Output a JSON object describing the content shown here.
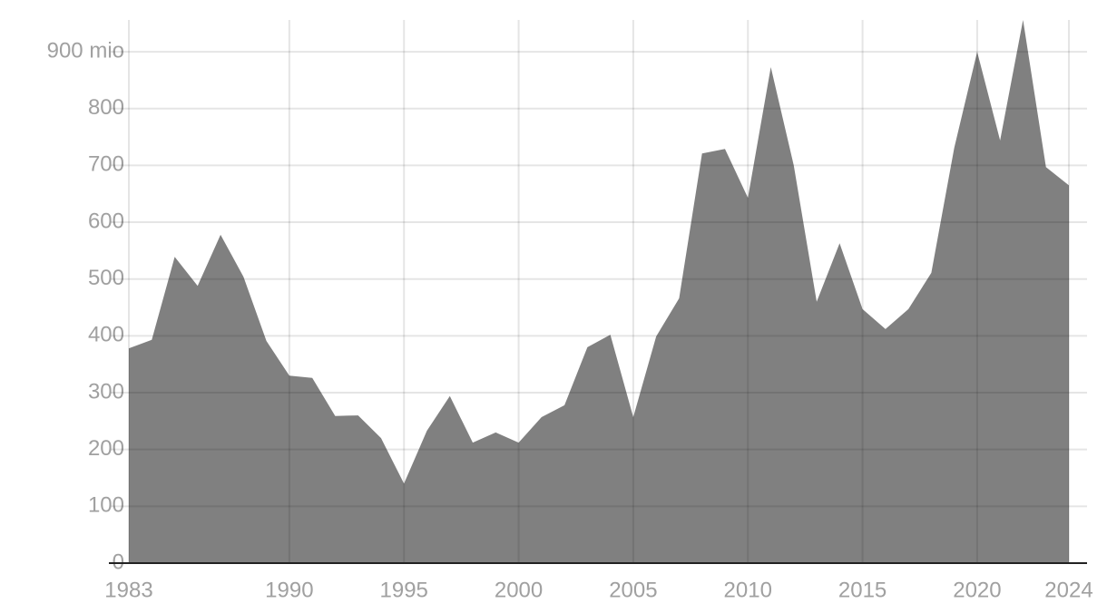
{
  "chart_data": {
    "type": "area",
    "x": [
      1983,
      1984,
      1985,
      1986,
      1987,
      1988,
      1989,
      1990,
      1991,
      1992,
      1993,
      1994,
      1995,
      1996,
      1997,
      1998,
      1999,
      2000,
      2001,
      2002,
      2003,
      2004,
      2005,
      2006,
      2007,
      2008,
      2009,
      2010,
      2011,
      2012,
      2013,
      2014,
      2015,
      2016,
      2017,
      2018,
      2019,
      2020,
      2021,
      2022,
      2023,
      2024
    ],
    "values": [
      378,
      393,
      539,
      488,
      578,
      504,
      391,
      330,
      326,
      259,
      260,
      220,
      140,
      233,
      294,
      212,
      230,
      212,
      257,
      278,
      380,
      402,
      257,
      399,
      466,
      721,
      729,
      643,
      873,
      700,
      460,
      563,
      447,
      412,
      447,
      511,
      731,
      900,
      744,
      956,
      697,
      665
    ],
    "color": "#808080",
    "xlim": [
      1983,
      2024
    ],
    "xticks": [
      1983,
      1990,
      1995,
      2000,
      2005,
      2010,
      2015,
      2020,
      2024
    ],
    "ylim": [
      0,
      956
    ],
    "yticks": [
      0,
      100,
      200,
      300,
      400,
      500,
      600,
      700,
      800,
      {
        "value": 900,
        "label": "900 mio"
      }
    ],
    "grid": true
  }
}
